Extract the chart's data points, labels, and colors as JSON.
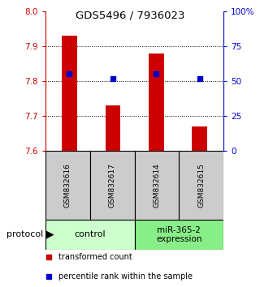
{
  "title": "GDS5496 / 7936023",
  "samples": [
    "GSM832616",
    "GSM832617",
    "GSM832614",
    "GSM832615"
  ],
  "bar_values": [
    7.93,
    7.73,
    7.88,
    7.67
  ],
  "percentile_values": [
    55,
    52,
    55,
    52
  ],
  "ylim_left": [
    7.6,
    8.0
  ],
  "ylim_right": [
    0,
    100
  ],
  "yticks_left": [
    7.6,
    7.7,
    7.8,
    7.9,
    8.0
  ],
  "yticks_right": [
    0,
    25,
    50,
    75,
    100
  ],
  "ytick_labels_right": [
    "0",
    "25",
    "50",
    "75",
    "100%"
  ],
  "bar_color": "#cc0000",
  "percentile_color": "#0000cc",
  "bar_width": 0.35,
  "group1_label": "control",
  "group2_label": "miR-365-2\nexpression",
  "group1_color": "#ccffcc",
  "group2_color": "#88ee88",
  "protocol_label": "protocol",
  "legend_bar_label": "transformed count",
  "legend_pct_label": "percentile rank within the sample",
  "sample_box_color": "#cccccc",
  "dotted_yticks": [
    7.7,
    7.8,
    7.9
  ]
}
